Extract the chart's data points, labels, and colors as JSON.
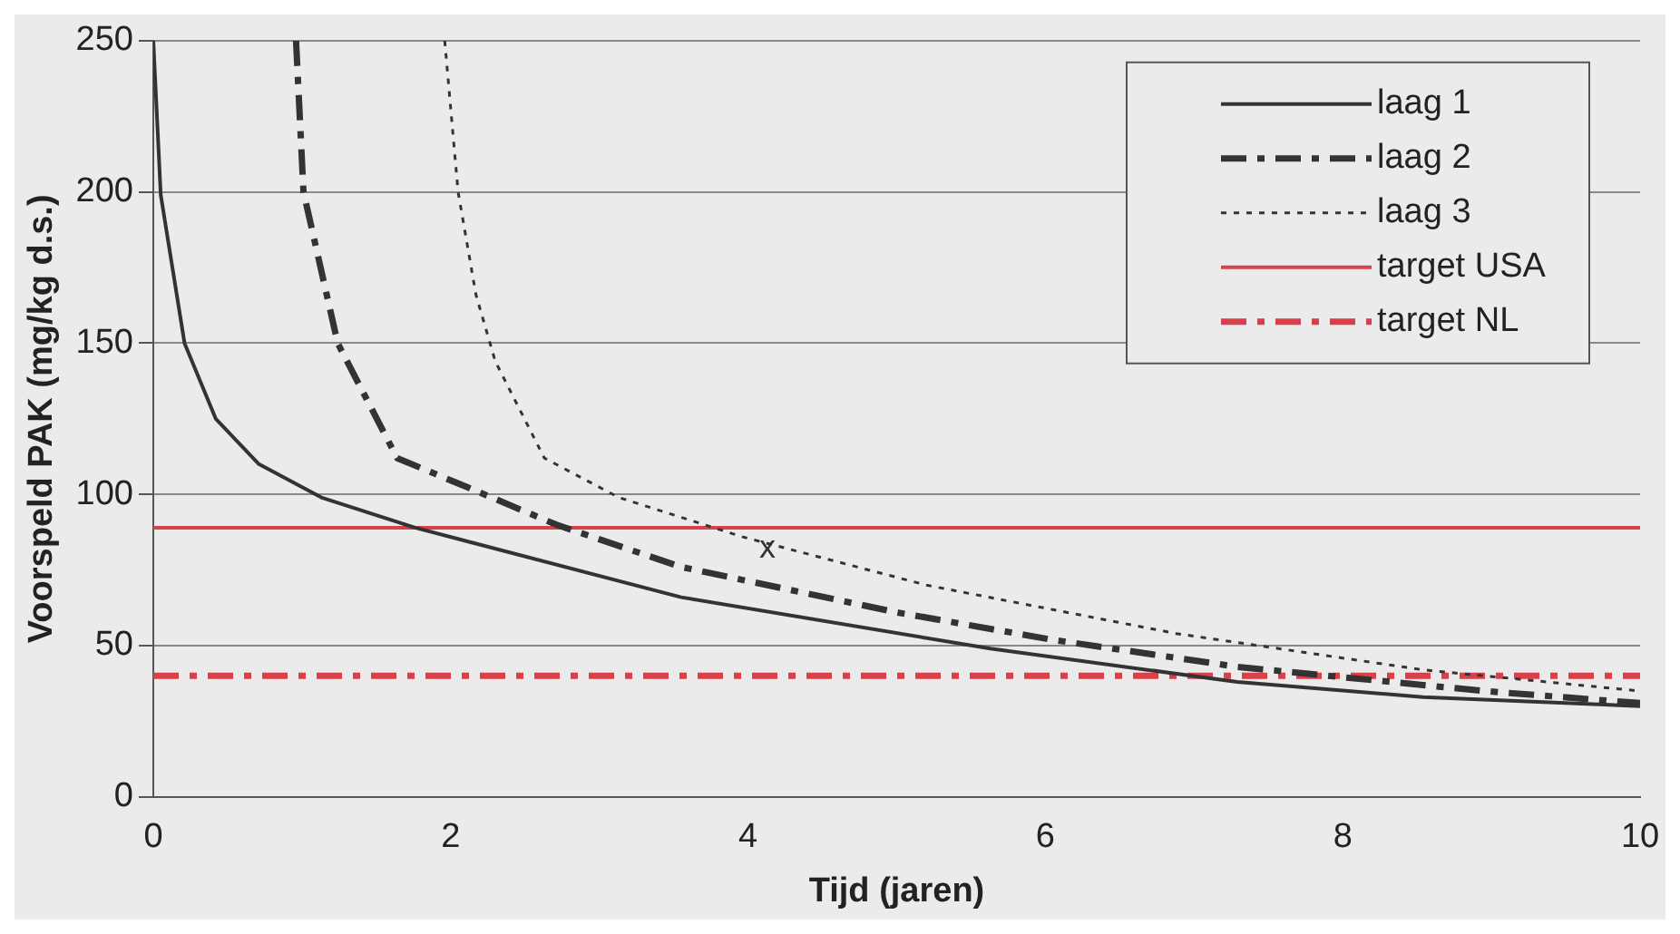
{
  "chart_data": {
    "type": "line",
    "xlabel": "Tijd (jaren)",
    "ylabel": "Voorspeld PAK (mg/kg d.s.)",
    "xlim": [
      0,
      10
    ],
    "xticks": [
      0,
      2,
      4,
      6,
      8,
      10
    ],
    "ylim": [
      0,
      250
    ],
    "yticks": [
      0,
      50,
      100,
      150,
      200,
      250
    ],
    "grid": "y",
    "legend": "top right",
    "marker": "none",
    "series": [
      {
        "name": "laag 1",
        "color": "#333333",
        "line_style": "solid",
        "x": [
          0,
          0.05,
          0.21,
          0.42,
          0.71,
          1.13,
          1.76,
          3.55,
          5.63,
          7.29,
          8.54,
          10
        ],
        "values": [
          250,
          199,
          150,
          125,
          110,
          99,
          89,
          66,
          49,
          38,
          33,
          30
        ]
      },
      {
        "name": "laag 2",
        "color": "#333333",
        "line_style": "dashed",
        "x": [
          0.96,
          1.01,
          1.24,
          1.64,
          2.13,
          2.71,
          3.55,
          5.0,
          6.04,
          7.29,
          8.95,
          10
        ],
        "values": [
          250,
          200,
          150,
          112,
          102,
          90,
          76,
          61,
          52,
          43,
          35,
          31
        ]
      },
      {
        "name": "laag 3",
        "color": "#333333",
        "line_style": "dotted",
        "x": [
          1.96,
          2.05,
          2.17,
          2.3,
          2.63,
          3.13,
          3.96,
          5.2,
          6.88,
          8.54,
          10
        ],
        "values": [
          250,
          200,
          166,
          144,
          112,
          99,
          86,
          70,
          54,
          42,
          35
        ]
      },
      {
        "name": "target USA",
        "color": "#d9404a",
        "line_style": "solid",
        "x": [
          0,
          10
        ],
        "values": [
          89,
          89
        ]
      },
      {
        "name": "target NL",
        "color": "#d9404a",
        "line_style": "dashed",
        "x": [
          0,
          10
        ],
        "values": [
          40,
          40
        ]
      }
    ],
    "annotations": [
      {
        "text": "x",
        "x": 4.13,
        "y": 82
      }
    ]
  }
}
